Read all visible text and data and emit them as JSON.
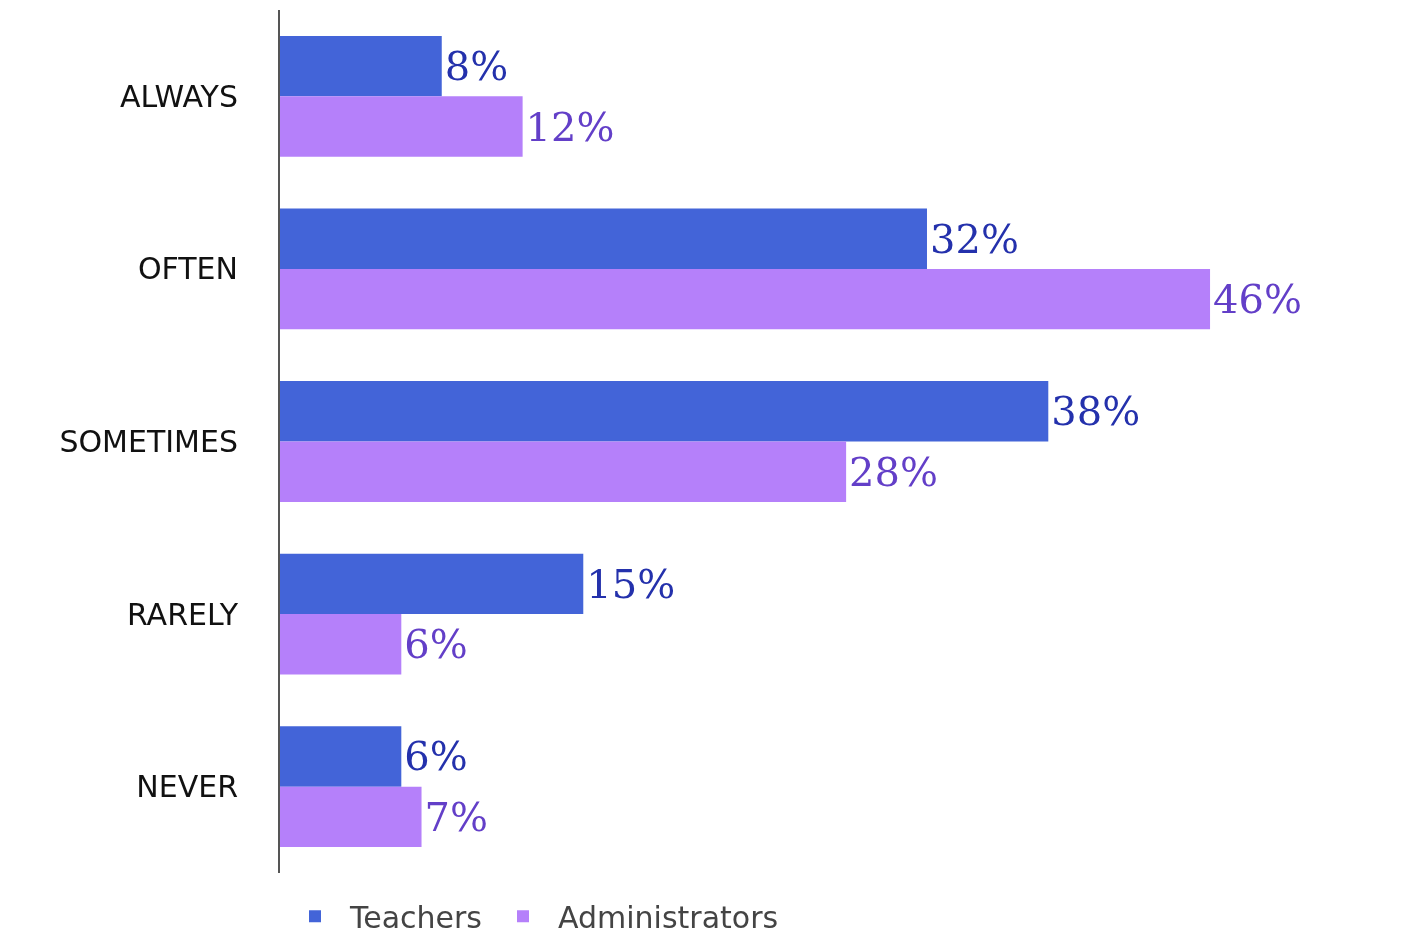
{
  "chart_data": {
    "type": "bar",
    "orientation": "horizontal",
    "categories": [
      "ALWAYS",
      "OFTEN",
      "SOMETIMES",
      "RARELY",
      "NEVER"
    ],
    "series": [
      {
        "name": "Teachers",
        "color": "#4364d8",
        "values": [
          8,
          32,
          38,
          15,
          6
        ],
        "value_labels": [
          "8%",
          "32%",
          "38%",
          "15%",
          "6%"
        ]
      },
      {
        "name": "Administrators",
        "color": "#b580fa",
        "values": [
          12,
          46,
          28,
          6,
          7
        ],
        "value_labels": [
          "12%",
          "46%",
          "28%",
          "6%",
          "7%"
        ]
      }
    ],
    "tick_labels": "y",
    "legend": "bottom"
  }
}
